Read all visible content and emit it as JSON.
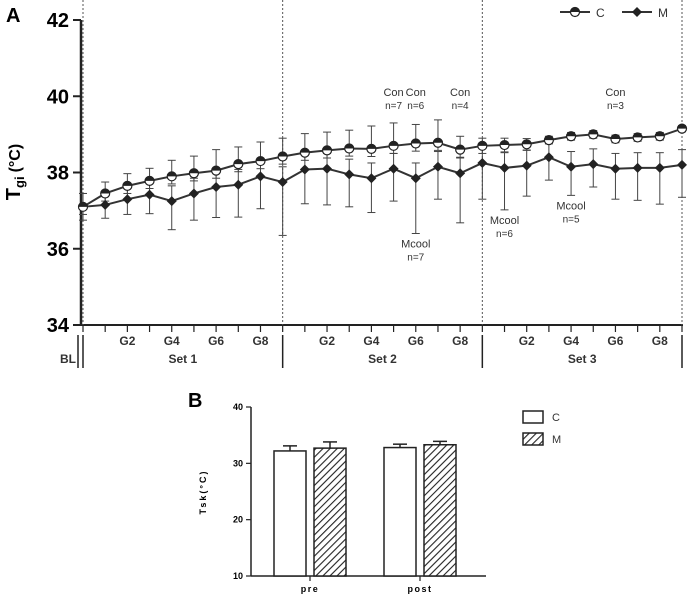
{
  "chart_data": [
    {
      "panel_label": "A",
      "type": "line",
      "ylabel": "T",
      "ylabel_sub": "gi",
      "ylabel_unit": "(°C)",
      "ylim": [
        34,
        42
      ],
      "yticks": [
        34,
        36,
        38,
        40,
        42
      ],
      "x_tick_labels": [
        "G2",
        "G4",
        "G6",
        "G8"
      ],
      "baseline_label": "BL",
      "sets": [
        "Set 1",
        "Set 2",
        "Set 3"
      ],
      "legend": [
        {
          "name": "C",
          "marker": "open-circle"
        },
        {
          "name": "M",
          "marker": "filled-diamond"
        }
      ],
      "series": [
        {
          "name": "C",
          "values": [
            37.1,
            37.45,
            37.65,
            37.78,
            37.9,
            37.98,
            38.05,
            38.22,
            38.3,
            38.42,
            38.52,
            38.58,
            38.63,
            38.62,
            38.7,
            38.76,
            38.78,
            38.6,
            38.7,
            38.72,
            38.74,
            38.85,
            38.95,
            39.0,
            38.88,
            38.92,
            38.95,
            39.15
          ],
          "errors": [
            0.35,
            0.3,
            0.32,
            0.33,
            0.42,
            0.45,
            0.55,
            0.45,
            0.5,
            0.48,
            0.5,
            0.48,
            0.48,
            0.6,
            0.6,
            0.5,
            0.6,
            0.35,
            0.2,
            0.18,
            0.15,
            0.1,
            0.1,
            0.1,
            0.1,
            0.1,
            0.1,
            0.08
          ]
        },
        {
          "name": "M",
          "values": [
            37.1,
            37.15,
            37.3,
            37.42,
            37.25,
            37.45,
            37.62,
            37.68,
            37.9,
            37.75,
            38.08,
            38.1,
            37.95,
            37.85,
            38.1,
            37.85,
            38.15,
            37.98,
            38.25,
            38.12,
            38.18,
            38.4,
            38.15,
            38.22,
            38.1,
            38.12,
            38.12,
            38.2
          ],
          "errors": [
            0.35,
            0.35,
            0.4,
            0.5,
            0.75,
            0.7,
            0.8,
            0.85,
            0.85,
            1.4,
            0.9,
            0.95,
            0.85,
            0.9,
            0.85,
            1.45,
            0.85,
            1.3,
            0.95,
            1.1,
            0.8,
            0.6,
            0.75,
            0.6,
            0.8,
            0.85,
            0.95,
            0.85
          ]
        }
      ],
      "annotations": [
        {
          "text": "Con",
          "sub": "n=7",
          "x_index": 14,
          "pos": "above"
        },
        {
          "text": "Con",
          "sub": "n=6",
          "x_index": 15,
          "pos": "above"
        },
        {
          "text": "Con",
          "sub": "n=4",
          "x_index": 17,
          "pos": "above"
        },
        {
          "text": "Con",
          "sub": "n=3",
          "x_index": 24,
          "pos": "above"
        },
        {
          "text": "Mcool",
          "sub": "n=7",
          "x_index": 15,
          "pos": "below"
        },
        {
          "text": "Mcool",
          "sub": "n=6",
          "x_index": 19,
          "pos": "below"
        },
        {
          "text": "Mcool",
          "sub": "n=5",
          "x_index": 22,
          "pos": "below"
        }
      ]
    },
    {
      "panel_label": "B",
      "type": "bar",
      "ylabel": "Tsk(°C)",
      "ylim": [
        10,
        40
      ],
      "yticks": [
        10,
        20,
        30,
        40
      ],
      "categories": [
        "pre",
        "post"
      ],
      "legend": [
        {
          "name": "C",
          "fill": "open"
        },
        {
          "name": "M",
          "fill": "hatched"
        }
      ],
      "series": [
        {
          "name": "C",
          "values": [
            32.2,
            32.8
          ],
          "errors": [
            0.9,
            0.6
          ]
        },
        {
          "name": "M",
          "values": [
            32.7,
            33.3
          ],
          "errors": [
            1.1,
            0.6
          ]
        }
      ]
    }
  ]
}
